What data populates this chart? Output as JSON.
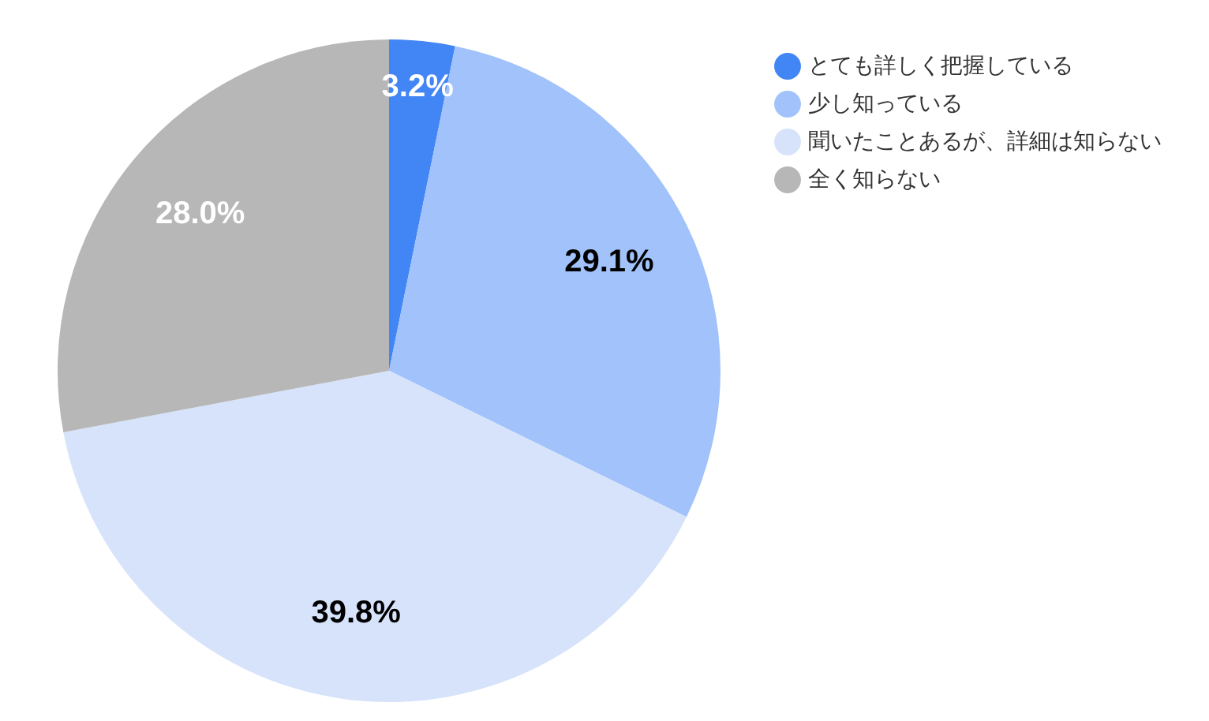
{
  "chart_data": {
    "type": "pie",
    "categories": [
      "とても詳しく把握している",
      "少し知っている",
      "聞いたことあるが、詳細は知らない",
      "全く知らない"
    ],
    "values": [
      3.2,
      29.1,
      39.8,
      28.0
    ],
    "value_labels": [
      "3.2%",
      "29.1%",
      "39.8%",
      "28.0%"
    ],
    "colors": [
      "#4285f4",
      "#a1c2fa",
      "#d6e3fb",
      "#b7b7b7"
    ],
    "legend": "top right"
  }
}
